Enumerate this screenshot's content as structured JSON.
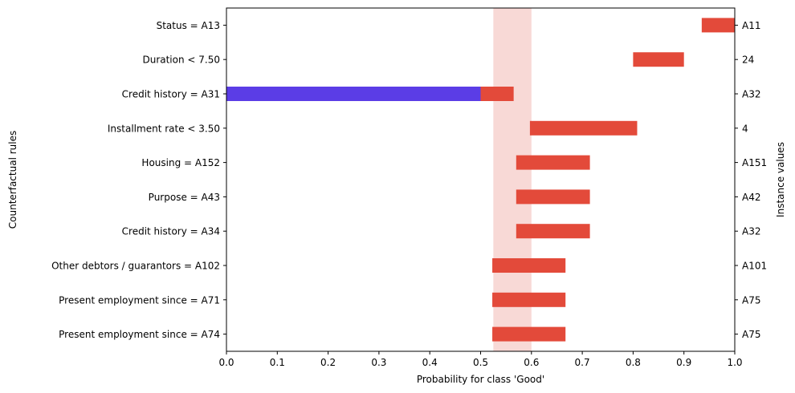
{
  "chart_data": {
    "type": "bar",
    "xlabel": "Probability for class 'Good'",
    "ylabel_left": "Counterfactual rules",
    "ylabel_right": "Instance values",
    "xlim": [
      0.0,
      1.0
    ],
    "xticks": [
      "0.0",
      "0.1",
      "0.2",
      "0.3",
      "0.4",
      "0.5",
      "0.6",
      "0.7",
      "0.8",
      "0.9",
      "1.0"
    ],
    "uncertainty_band": [
      0.525,
      0.6
    ],
    "colors": {
      "counterfactual": "#e34a3a",
      "base": "#5b3de6",
      "band": "#f8d9d6"
    },
    "rows": [
      {
        "rule": "Status = A13",
        "value": "A11",
        "low": 0.935,
        "high": 1.0
      },
      {
        "rule": "Duration < 7.50",
        "value": "24",
        "low": 0.8,
        "high": 0.9
      },
      {
        "rule": "Credit history = A31",
        "value": "A32",
        "low": 0.5,
        "high": 0.565,
        "base_low": 0.0,
        "base_high": 0.5
      },
      {
        "rule": "Installment rate < 3.50",
        "value": "4",
        "low": 0.597,
        "high": 0.808
      },
      {
        "rule": "Housing = A152",
        "value": "A151",
        "low": 0.57,
        "high": 0.715
      },
      {
        "rule": "Purpose = A43",
        "value": "A42",
        "low": 0.57,
        "high": 0.715
      },
      {
        "rule": "Credit history = A34",
        "value": "A32",
        "low": 0.57,
        "high": 0.715
      },
      {
        "rule": "Other debtors / guarantors = A102",
        "value": "A101",
        "low": 0.523,
        "high": 0.667
      },
      {
        "rule": "Present employment since = A71",
        "value": "A75",
        "low": 0.523,
        "high": 0.667
      },
      {
        "rule": "Present employment since = A74",
        "value": "A75",
        "low": 0.523,
        "high": 0.667
      }
    ]
  }
}
